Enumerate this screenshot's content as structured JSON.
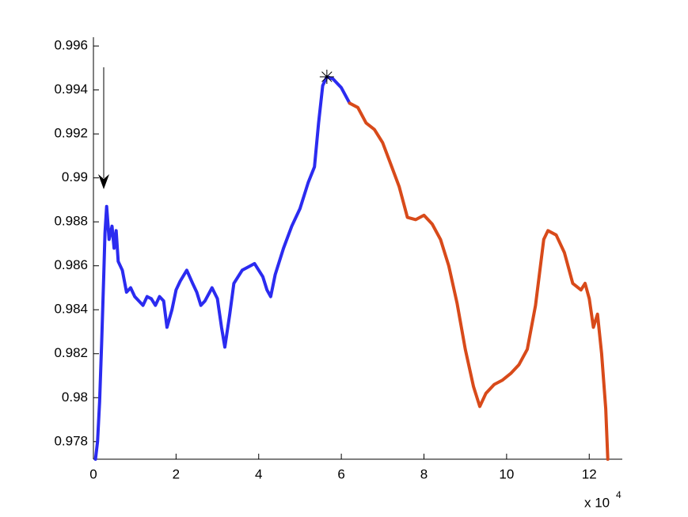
{
  "chart_data": {
    "type": "line",
    "x_multiplier": {
      "base": "x 10",
      "exponent": "4"
    },
    "xlim": [
      0,
      12.8
    ],
    "xticks": [
      0,
      2,
      4,
      6,
      8,
      10,
      12
    ],
    "ylim": [
      0.9772,
      0.9964
    ],
    "yticks": [
      0.978,
      0.98,
      0.982,
      0.984,
      0.986,
      0.988,
      0.99,
      0.992,
      0.994,
      0.996
    ],
    "grid": false,
    "series": [
      {
        "color": "#2b2bf0",
        "x": [
          0.05,
          0.1,
          0.15,
          0.2,
          0.25,
          0.28,
          0.32,
          0.38,
          0.45,
          0.5,
          0.55,
          0.6,
          0.7,
          0.8,
          0.9,
          1.0,
          1.1,
          1.2,
          1.3,
          1.4,
          1.5,
          1.6,
          1.7,
          1.78,
          1.9,
          2.0,
          2.1,
          2.26,
          2.4,
          2.5,
          2.6,
          2.7,
          2.87,
          3.0,
          3.1,
          3.18,
          3.3,
          3.4,
          3.6,
          3.8,
          3.9,
          4.0,
          4.1,
          4.2,
          4.29,
          4.4,
          4.6,
          4.8,
          5.0,
          5.2,
          5.35,
          5.45,
          5.55,
          5.65,
          5.8,
          6.0,
          6.2
        ],
        "values": [
          0.9772,
          0.978,
          0.9798,
          0.9825,
          0.9855,
          0.9875,
          0.9887,
          0.9872,
          0.9878,
          0.9868,
          0.9876,
          0.9862,
          0.9858,
          0.9848,
          0.985,
          0.9846,
          0.9844,
          0.9842,
          0.9846,
          0.9845,
          0.9842,
          0.9846,
          0.9844,
          0.9832,
          0.984,
          0.9849,
          0.9853,
          0.9858,
          0.9852,
          0.9848,
          0.9842,
          0.9844,
          0.985,
          0.9845,
          0.9832,
          0.9823,
          0.9838,
          0.9852,
          0.9858,
          0.986,
          0.9861,
          0.9858,
          0.9855,
          0.9849,
          0.9846,
          0.9856,
          0.9868,
          0.9878,
          0.9886,
          0.9898,
          0.9905,
          0.9925,
          0.9942,
          0.9946,
          0.9945,
          0.9941,
          0.9934
        ]
      },
      {
        "color": "#d84a1a",
        "x": [
          6.2,
          6.4,
          6.6,
          6.8,
          7.0,
          7.2,
          7.4,
          7.6,
          7.8,
          8.0,
          8.2,
          8.4,
          8.6,
          8.8,
          9.0,
          9.2,
          9.35,
          9.5,
          9.7,
          9.9,
          10.1,
          10.3,
          10.5,
          10.7,
          10.9,
          11.0,
          11.2,
          11.4,
          11.6,
          11.8,
          11.9,
          12.0,
          12.1,
          12.2,
          12.3,
          12.4,
          12.45
        ],
        "values": [
          0.9934,
          0.9932,
          0.9925,
          0.9922,
          0.9916,
          0.9906,
          0.9896,
          0.9882,
          0.9881,
          0.9883,
          0.9879,
          0.9872,
          0.986,
          0.9843,
          0.9822,
          0.9805,
          0.9796,
          0.9802,
          0.9806,
          0.9808,
          0.9811,
          0.9815,
          0.9822,
          0.9842,
          0.9872,
          0.9876,
          0.9874,
          0.9866,
          0.9852,
          0.9849,
          0.9852,
          0.9845,
          0.9832,
          0.9838,
          0.982,
          0.9795,
          0.9772
        ]
      }
    ]
  }
}
